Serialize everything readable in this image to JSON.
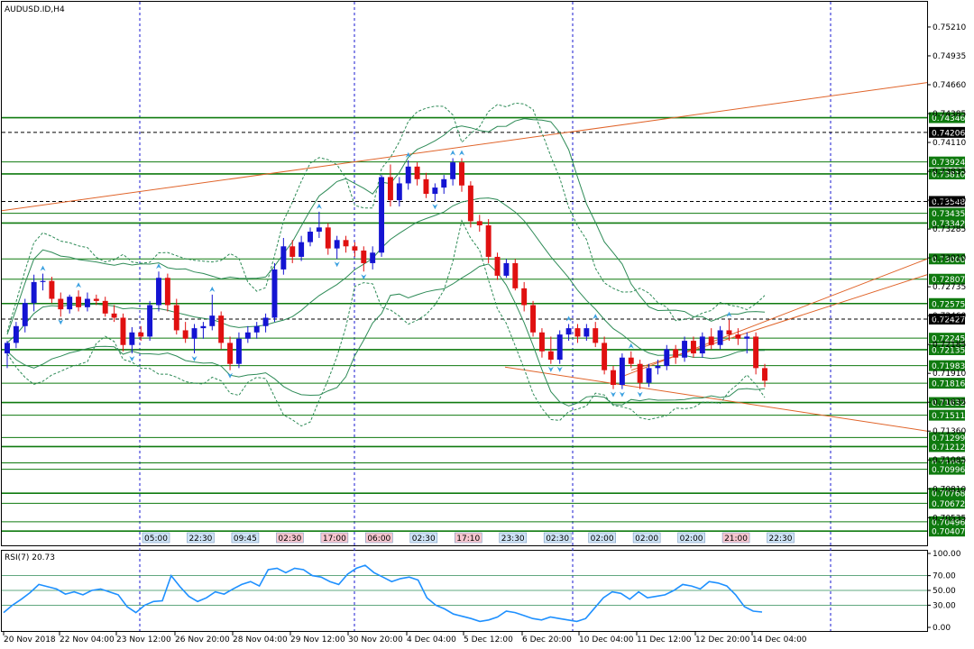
{
  "chart_title": "AUDUSD.ID,H4",
  "rsi_title": "RSI(7) 20.73",
  "colors": {
    "bull": "#1414d2",
    "bear": "#e01010",
    "green_line": "#0f7a0f",
    "orange_line": "#e0642a",
    "band": "#2e8b57",
    "rsi": "#1e90ff",
    "grid": "#1a1ad0"
  },
  "chart_data": {
    "type": "candlestick",
    "ylim": [
      0.704,
      0.7545
    ],
    "y_ticks": [
      "0.75210",
      "0.74935",
      "0.74660",
      "0.74385",
      "0.74110",
      "0.73835",
      "0.73560",
      "0.73285",
      "0.73010",
      "0.72735",
      "0.72460",
      "0.72185",
      "0.71910",
      "0.71635",
      "0.71360",
      "0.71085",
      "0.70810",
      "0.70535"
    ],
    "level_labels": [
      {
        "text": "0.74346",
        "style": "green"
      },
      {
        "text": "0.74206",
        "style": "black"
      },
      {
        "text": "0.73924",
        "style": "green"
      },
      {
        "text": "0.73810",
        "style": "green"
      },
      {
        "text": "0.73548",
        "style": "black"
      },
      {
        "text": "0.73435",
        "style": "green"
      },
      {
        "text": "0.73342",
        "style": "green"
      },
      {
        "text": "0.73000",
        "style": "green"
      },
      {
        "text": "0.72807",
        "style": "green"
      },
      {
        "text": "0.72575",
        "style": "green"
      },
      {
        "text": "0.72427",
        "style": "black"
      },
      {
        "text": "0.72245",
        "style": "green"
      },
      {
        "text": "0.72135",
        "style": "green"
      },
      {
        "text": "0.71983",
        "style": "green"
      },
      {
        "text": "0.71816",
        "style": "green"
      },
      {
        "text": "0.71632",
        "style": "green"
      },
      {
        "text": "0.71511",
        "style": "green"
      },
      {
        "text": "0.71299",
        "style": "green"
      },
      {
        "text": "0.71212",
        "style": "green"
      },
      {
        "text": "0.71057",
        "style": "green"
      },
      {
        "text": "0.70996",
        "style": "green"
      },
      {
        "text": "0.70768",
        "style": "green"
      },
      {
        "text": "0.70672",
        "style": "green"
      },
      {
        "text": "0.70496",
        "style": "green"
      },
      {
        "text": "0.70407",
        "style": "green"
      }
    ],
    "x_labels": [
      "20 Nov 2018",
      "22 Nov 04:00",
      "23 Nov 12:00",
      "26 Nov 20:00",
      "28 Nov 04:00",
      "29 Nov 12:00",
      "30 Nov 20:00",
      "4 Dec 04:00",
      "5 Dec 12:00",
      "6 Dec 20:00",
      "10 Dec 04:00",
      "11 Dec 12:00",
      "12 Dec 20:00",
      "14 Dec 04:00"
    ],
    "session_labels": [
      "05:00",
      "22:30",
      "09:45",
      "02:30",
      "17:00",
      "06:00",
      "02:30",
      "17:10",
      "23:30",
      "02:30",
      "02:00",
      "02:00",
      "02:00",
      "21:00",
      "22:30"
    ],
    "rsi": {
      "ylim": [
        0,
        100
      ],
      "ticks": [
        "100.00",
        "70.00",
        "50.00",
        "30.00",
        "0.00"
      ],
      "values": [
        20,
        30,
        38,
        47,
        58,
        55,
        52,
        45,
        48,
        44,
        50,
        52,
        48,
        44,
        28,
        20,
        30,
        35,
        36,
        70,
        55,
        42,
        35,
        40,
        48,
        45,
        52,
        58,
        62,
        56,
        78,
        80,
        74,
        80,
        78,
        70,
        68,
        62,
        58,
        72,
        80,
        84,
        74,
        68,
        62,
        66,
        68,
        64,
        40,
        30,
        25,
        18,
        15,
        12,
        8,
        10,
        14,
        22,
        20,
        16,
        12,
        10,
        14,
        12,
        10,
        8,
        12,
        26,
        40,
        48,
        46,
        38,
        48,
        40,
        42,
        44,
        50,
        58,
        56,
        52,
        62,
        60,
        56,
        44,
        28,
        22,
        20.73
      ]
    },
    "candles": [
      {
        "o": 0.721,
        "h": 0.7222,
        "l": 0.7196,
        "c": 0.722
      },
      {
        "o": 0.722,
        "h": 0.724,
        "l": 0.7215,
        "c": 0.7236
      },
      {
        "o": 0.7236,
        "h": 0.7262,
        "l": 0.723,
        "c": 0.7258
      },
      {
        "o": 0.7258,
        "h": 0.7285,
        "l": 0.725,
        "c": 0.7278
      },
      {
        "o": 0.7278,
        "h": 0.7286,
        "l": 0.727,
        "c": 0.7279
      },
      {
        "o": 0.7279,
        "h": 0.7283,
        "l": 0.7258,
        "c": 0.7262
      },
      {
        "o": 0.7262,
        "h": 0.7268,
        "l": 0.7245,
        "c": 0.7252
      },
      {
        "o": 0.7252,
        "h": 0.7266,
        "l": 0.7248,
        "c": 0.7264
      },
      {
        "o": 0.7264,
        "h": 0.727,
        "l": 0.725,
        "c": 0.7254
      },
      {
        "o": 0.7254,
        "h": 0.7268,
        "l": 0.725,
        "c": 0.7262
      },
      {
        "o": 0.7262,
        "h": 0.7266,
        "l": 0.7256,
        "c": 0.726
      },
      {
        "o": 0.726,
        "h": 0.7264,
        "l": 0.7245,
        "c": 0.7248
      },
      {
        "o": 0.7248,
        "h": 0.7256,
        "l": 0.724,
        "c": 0.7244
      },
      {
        "o": 0.7244,
        "h": 0.7248,
        "l": 0.7212,
        "c": 0.7218
      },
      {
        "o": 0.7218,
        "h": 0.7235,
        "l": 0.721,
        "c": 0.723
      },
      {
        "o": 0.723,
        "h": 0.7236,
        "l": 0.7222,
        "c": 0.7226
      },
      {
        "o": 0.7226,
        "h": 0.726,
        "l": 0.7222,
        "c": 0.7256
      },
      {
        "o": 0.7256,
        "h": 0.7288,
        "l": 0.725,
        "c": 0.7282
      },
      {
        "o": 0.7282,
        "h": 0.7286,
        "l": 0.725,
        "c": 0.7256
      },
      {
        "o": 0.7256,
        "h": 0.7262,
        "l": 0.7228,
        "c": 0.7232
      },
      {
        "o": 0.7232,
        "h": 0.724,
        "l": 0.722,
        "c": 0.7224
      },
      {
        "o": 0.7224,
        "h": 0.7238,
        "l": 0.721,
        "c": 0.7234
      },
      {
        "o": 0.7234,
        "h": 0.724,
        "l": 0.7224,
        "c": 0.7236
      },
      {
        "o": 0.7236,
        "h": 0.7266,
        "l": 0.7232,
        "c": 0.7246
      },
      {
        "o": 0.7246,
        "h": 0.725,
        "l": 0.7214,
        "c": 0.722
      },
      {
        "o": 0.722,
        "h": 0.7226,
        "l": 0.7194,
        "c": 0.72
      },
      {
        "o": 0.72,
        "h": 0.723,
        "l": 0.7196,
        "c": 0.7224
      },
      {
        "o": 0.7224,
        "h": 0.7236,
        "l": 0.722,
        "c": 0.723
      },
      {
        "o": 0.723,
        "h": 0.724,
        "l": 0.7224,
        "c": 0.7236
      },
      {
        "o": 0.7236,
        "h": 0.7248,
        "l": 0.723,
        "c": 0.7244
      },
      {
        "o": 0.7244,
        "h": 0.7296,
        "l": 0.724,
        "c": 0.729
      },
      {
        "o": 0.729,
        "h": 0.732,
        "l": 0.7285,
        "c": 0.7312
      },
      {
        "o": 0.7312,
        "h": 0.7318,
        "l": 0.7296,
        "c": 0.7302
      },
      {
        "o": 0.7302,
        "h": 0.7322,
        "l": 0.7298,
        "c": 0.7316
      },
      {
        "o": 0.7316,
        "h": 0.733,
        "l": 0.7312,
        "c": 0.7326
      },
      {
        "o": 0.7326,
        "h": 0.7345,
        "l": 0.732,
        "c": 0.733
      },
      {
        "o": 0.733,
        "h": 0.7334,
        "l": 0.7304,
        "c": 0.731
      },
      {
        "o": 0.731,
        "h": 0.7322,
        "l": 0.73,
        "c": 0.7318
      },
      {
        "o": 0.7318,
        "h": 0.7322,
        "l": 0.7306,
        "c": 0.7312
      },
      {
        "o": 0.7312,
        "h": 0.7316,
        "l": 0.7302,
        "c": 0.7308
      },
      {
        "o": 0.7308,
        "h": 0.7312,
        "l": 0.7288,
        "c": 0.7296
      },
      {
        "o": 0.7296,
        "h": 0.7312,
        "l": 0.729,
        "c": 0.7306
      },
      {
        "o": 0.7306,
        "h": 0.738,
        "l": 0.7302,
        "c": 0.7378
      },
      {
        "o": 0.7378,
        "h": 0.739,
        "l": 0.735,
        "c": 0.7356
      },
      {
        "o": 0.7356,
        "h": 0.7378,
        "l": 0.735,
        "c": 0.7372
      },
      {
        "o": 0.7372,
        "h": 0.7394,
        "l": 0.7366,
        "c": 0.7388
      },
      {
        "o": 0.7388,
        "h": 0.7392,
        "l": 0.737,
        "c": 0.7376
      },
      {
        "o": 0.7376,
        "h": 0.7382,
        "l": 0.7358,
        "c": 0.7362
      },
      {
        "o": 0.7362,
        "h": 0.7372,
        "l": 0.7355,
        "c": 0.7368
      },
      {
        "o": 0.7368,
        "h": 0.738,
        "l": 0.7362,
        "c": 0.7376
      },
      {
        "o": 0.7376,
        "h": 0.7396,
        "l": 0.737,
        "c": 0.7392
      },
      {
        "o": 0.7392,
        "h": 0.7396,
        "l": 0.7364,
        "c": 0.737
      },
      {
        "o": 0.737,
        "h": 0.7374,
        "l": 0.733,
        "c": 0.7336
      },
      {
        "o": 0.7336,
        "h": 0.7342,
        "l": 0.7326,
        "c": 0.7332
      },
      {
        "o": 0.7332,
        "h": 0.7338,
        "l": 0.7296,
        "c": 0.7302
      },
      {
        "o": 0.7302,
        "h": 0.7306,
        "l": 0.728,
        "c": 0.7284
      },
      {
        "o": 0.7284,
        "h": 0.73,
        "l": 0.7282,
        "c": 0.7296
      },
      {
        "o": 0.7296,
        "h": 0.73,
        "l": 0.727,
        "c": 0.7272
      },
      {
        "o": 0.7272,
        "h": 0.7278,
        "l": 0.725,
        "c": 0.7256
      },
      {
        "o": 0.7256,
        "h": 0.726,
        "l": 0.7226,
        "c": 0.723
      },
      {
        "o": 0.723,
        "h": 0.7234,
        "l": 0.7206,
        "c": 0.7212
      },
      {
        "o": 0.7212,
        "h": 0.7226,
        "l": 0.72,
        "c": 0.7204
      },
      {
        "o": 0.7204,
        "h": 0.7232,
        "l": 0.72,
        "c": 0.7228
      },
      {
        "o": 0.7228,
        "h": 0.7238,
        "l": 0.7222,
        "c": 0.7234
      },
      {
        "o": 0.7234,
        "h": 0.7238,
        "l": 0.722,
        "c": 0.7226
      },
      {
        "o": 0.7226,
        "h": 0.7238,
        "l": 0.7222,
        "c": 0.7234
      },
      {
        "o": 0.7234,
        "h": 0.724,
        "l": 0.7216,
        "c": 0.722
      },
      {
        "o": 0.722,
        "h": 0.7226,
        "l": 0.719,
        "c": 0.7194
      },
      {
        "o": 0.7194,
        "h": 0.7198,
        "l": 0.7176,
        "c": 0.718
      },
      {
        "o": 0.718,
        "h": 0.721,
        "l": 0.7176,
        "c": 0.7206
      },
      {
        "o": 0.7206,
        "h": 0.7212,
        "l": 0.7196,
        "c": 0.72
      },
      {
        "o": 0.72,
        "h": 0.7204,
        "l": 0.7176,
        "c": 0.7182
      },
      {
        "o": 0.7182,
        "h": 0.72,
        "l": 0.7178,
        "c": 0.7196
      },
      {
        "o": 0.7196,
        "h": 0.7204,
        "l": 0.719,
        "c": 0.7198
      },
      {
        "o": 0.7198,
        "h": 0.7218,
        "l": 0.7194,
        "c": 0.7214
      },
      {
        "o": 0.7214,
        "h": 0.7218,
        "l": 0.72,
        "c": 0.7206
      },
      {
        "o": 0.7206,
        "h": 0.7226,
        "l": 0.7202,
        "c": 0.7222
      },
      {
        "o": 0.7222,
        "h": 0.7226,
        "l": 0.7206,
        "c": 0.721
      },
      {
        "o": 0.721,
        "h": 0.723,
        "l": 0.7206,
        "c": 0.7226
      },
      {
        "o": 0.7226,
        "h": 0.7234,
        "l": 0.7214,
        "c": 0.7218
      },
      {
        "o": 0.7218,
        "h": 0.7236,
        "l": 0.7214,
        "c": 0.7232
      },
      {
        "o": 0.7232,
        "h": 0.7242,
        "l": 0.7222,
        "c": 0.7228
      },
      {
        "o": 0.7228,
        "h": 0.7234,
        "l": 0.7218,
        "c": 0.7224
      },
      {
        "o": 0.7224,
        "h": 0.723,
        "l": 0.721,
        "c": 0.7226
      },
      {
        "o": 0.7226,
        "h": 0.723,
        "l": 0.719,
        "c": 0.7196
      },
      {
        "o": 0.7196,
        "h": 0.72,
        "l": 0.7178,
        "c": 0.7184
      }
    ]
  }
}
